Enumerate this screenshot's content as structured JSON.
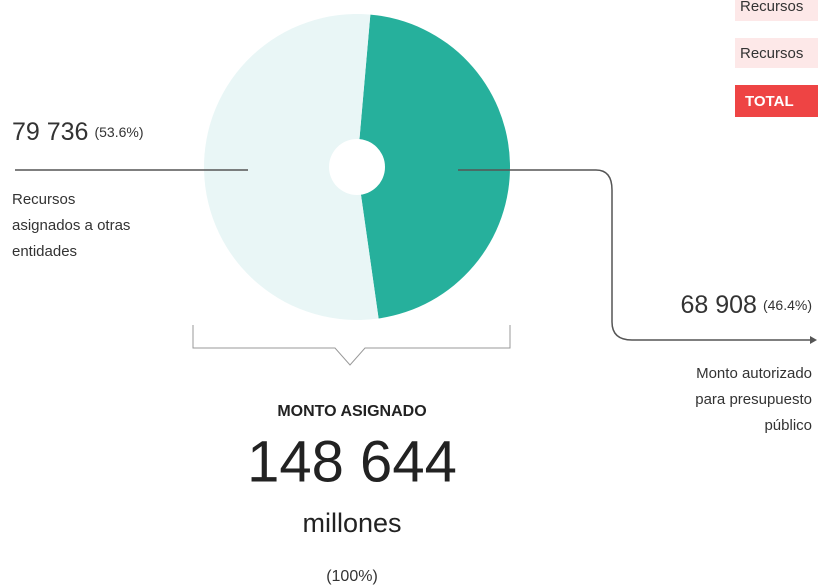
{
  "chart_data": {
    "type": "pie",
    "categories": [
      "Recursos asignados a otras entidades",
      "Monto autorizado para presupuesto público"
    ],
    "values": [
      79736,
      68908
    ],
    "value_labels": [
      "79 736",
      "68 908"
    ],
    "percent_labels": [
      "(53.6%)",
      "(46.4%)"
    ],
    "descriptions": [
      [
        "Recursos",
        "asignados a otras",
        "entidades"
      ],
      [
        "Monto autorizado",
        "para presupuesto",
        "público"
      ]
    ],
    "colors": [
      "#e9f6f6",
      "#26b09c"
    ],
    "total_title": "MONTO ASIGNADO",
    "total_label": "148 644",
    "total_unit": "millones",
    "total_percent": "(100%)",
    "legend_items": [
      "Recursos",
      "Recursos",
      "TOTAL"
    ]
  }
}
